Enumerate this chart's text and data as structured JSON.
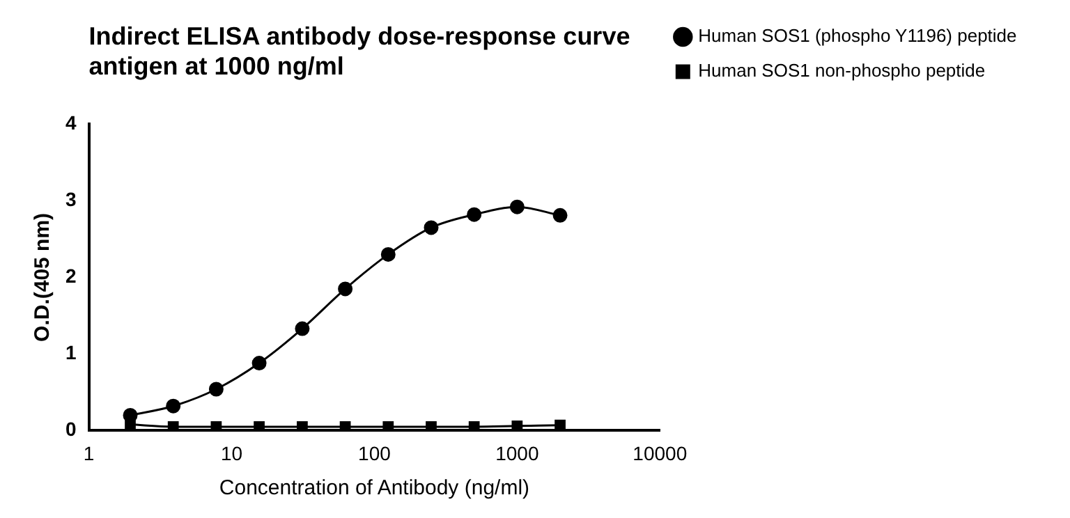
{
  "chart_data": {
    "type": "line",
    "title": "Indirect ELISA antibody dose-response curve\nantigen at 1000 ng/ml",
    "xlabel": "Concentration of Antibody (ng/ml)",
    "ylabel": "O.D.(405 nm)",
    "x": [
      1.95,
      3.9,
      7.8,
      15.6,
      31.25,
      62.5,
      125,
      250,
      500,
      1000,
      2000
    ],
    "series": [
      {
        "name": "Human SOS1 (phospho Y1196) peptide",
        "color": "#000000",
        "marker": "circle",
        "values": [
          0.2,
          0.32,
          0.54,
          0.88,
          1.33,
          1.85,
          2.3,
          2.65,
          2.82,
          2.92,
          2.81
        ]
      },
      {
        "name": "Human SOS1 non-phospho peptide",
        "color": "#000000",
        "marker": "square",
        "values": [
          0.08,
          0.05,
          0.05,
          0.05,
          0.05,
          0.05,
          0.05,
          0.05,
          0.05,
          0.06,
          0.07
        ]
      }
    ],
    "log": "x",
    "xlim": [
      1,
      10000
    ],
    "xticks": [
      1,
      10,
      100,
      1000,
      10000
    ],
    "ylim": [
      0,
      4
    ],
    "yticks": [
      0,
      1,
      2,
      3,
      4
    ],
    "grid": false,
    "legend": "top right",
    "line_style": "solid"
  }
}
